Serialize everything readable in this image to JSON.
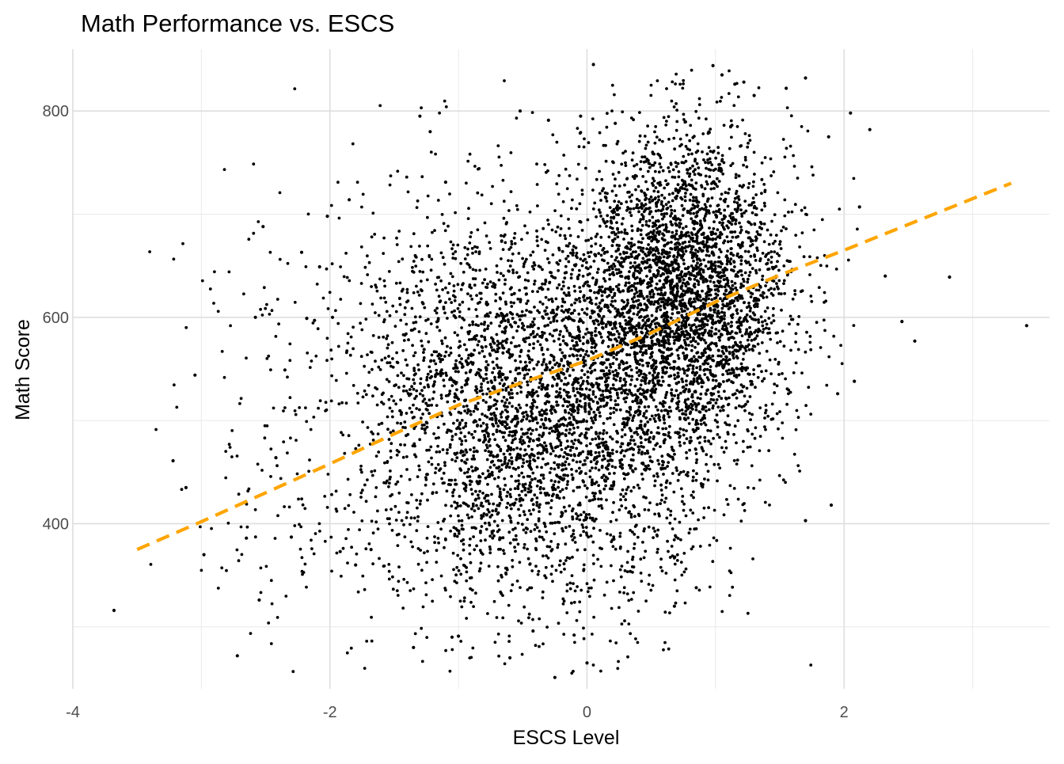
{
  "chart_data": {
    "type": "scatter",
    "title": "Math Performance vs. ESCS",
    "xlabel": "ESCS Level",
    "ylabel": "Math Score",
    "xlim": [
      -4.0,
      3.6
    ],
    "ylim": [
      240,
      860
    ],
    "x_ticks": [
      -4,
      -2,
      0,
      2
    ],
    "x_tick_labels": [
      "-4",
      "-2",
      "0",
      "2"
    ],
    "y_ticks": [
      400,
      600,
      800
    ],
    "y_tick_labels": [
      "400",
      "600",
      "800"
    ],
    "x_minor_ticks": [
      -3,
      -1,
      1,
      3
    ],
    "y_minor_ticks": [
      300,
      500,
      700
    ],
    "grid": true,
    "legend": "none",
    "point_color": "#000000",
    "fit_line_color": "#FFA500",
    "fit_line_style": "dashed",
    "fit_line": {
      "x": [
        -3.5,
        -3.0,
        -2.5,
        -2.0,
        -1.5,
        -1.0,
        -0.5,
        0.0,
        0.5,
        1.0,
        1.5,
        2.0,
        2.5,
        3.3
      ],
      "y": [
        375,
        402,
        430,
        458,
        487,
        515,
        537,
        558,
        585,
        615,
        641,
        665,
        690,
        730
      ]
    },
    "points": {
      "x": [
        -3.68,
        -3.22,
        -3.12,
        -3.05,
        -2.98,
        -2.72,
        -2.65,
        -2.58,
        -2.55,
        -2.52,
        -2.42,
        -2.35,
        -2.3,
        -2.22,
        -2.18,
        -2.12,
        -2.08,
        -2.02,
        -1.98,
        -1.92,
        -1.85,
        -1.8,
        -1.3,
        -1.22,
        -1.1,
        -1.05,
        -1.0,
        -0.52,
        -0.3,
        -0.05,
        0.05,
        0.22,
        0.98,
        1.05,
        1.15,
        1.22,
        1.3,
        1.55,
        1.7,
        1.88,
        2.05,
        2.12,
        2.2,
        2.32,
        2.45,
        2.55,
        2.82,
        3.42,
        2.08,
        1.95,
        1.9,
        1.7,
        0.85,
        0.68,
        -0.42,
        -0.25,
        -0.1,
        0.0,
        -0.6,
        -1.35,
        -1.68
      ],
      "y": [
        316,
        461,
        435,
        544,
        370,
        272,
        386,
        600,
        326,
        688,
        464,
        549,
        387,
        663,
        599,
        597,
        649,
        698,
        600,
        373,
        714,
        360,
        795,
        780,
        731,
        290,
        291,
        800,
        791,
        795,
        845,
        788,
        844,
        835,
        826,
        828,
        815,
        822,
        832,
        775,
        798,
        707,
        782,
        640,
        596,
        577,
        639,
        592,
        538,
        526,
        418,
        403,
        338,
        320,
        296,
        251,
        292,
        265,
        270,
        280,
        375
      ]
    }
  }
}
